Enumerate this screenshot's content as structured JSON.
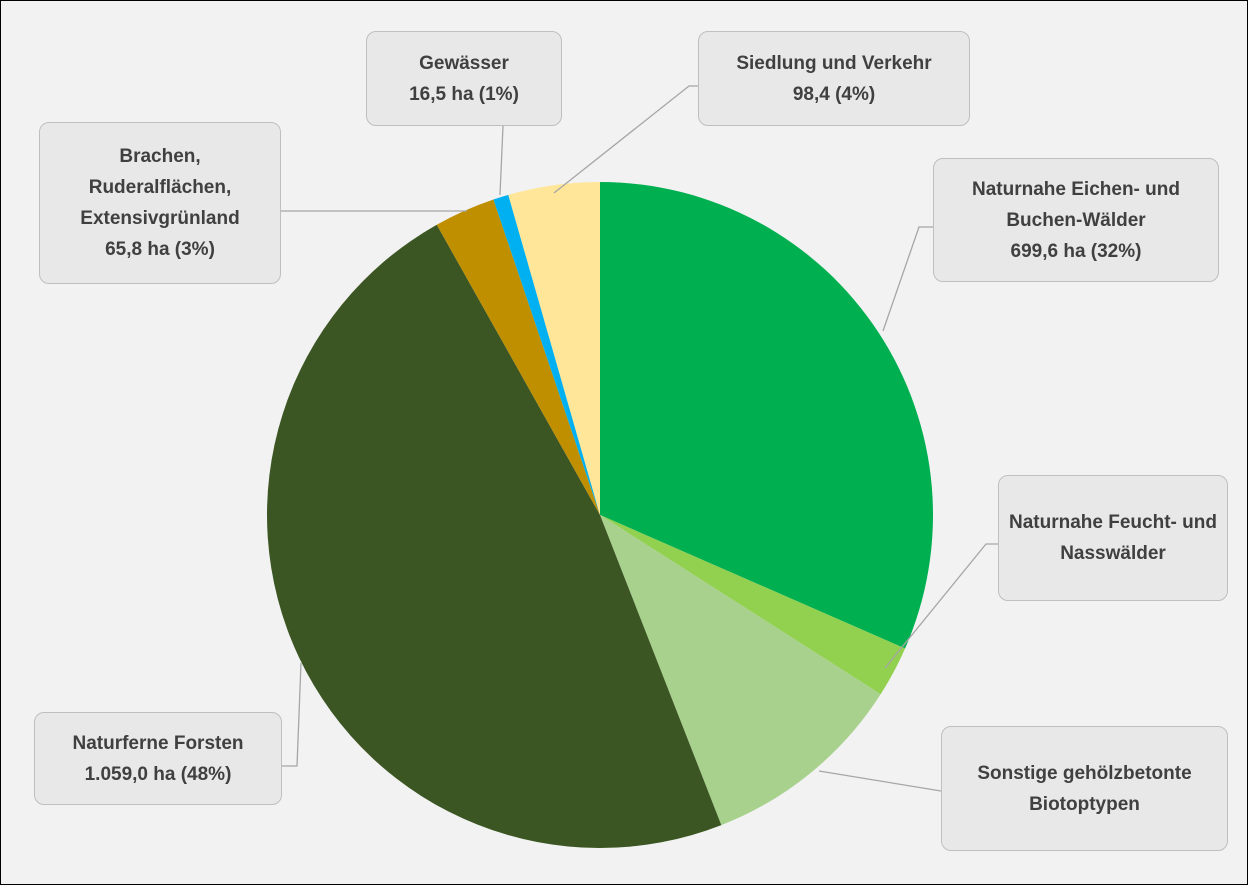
{
  "chart_data": {
    "type": "pie",
    "categories": [
      "Naturnahe Eichen- und Buchen-Wälder",
      "Naturnahe Feucht- und Nasswälder",
      "Sonstige gehölzbetonte Biotoptypen",
      "Naturferne Forsten",
      "Brachen, Ruderalflächen, Extensivgrünland",
      "Gewässer",
      "Siedlung und Verkehr"
    ],
    "values": [
      699.6,
      55,
      222,
      1059.0,
      65.8,
      16.5,
      98.4
    ],
    "value_labels": [
      "699,6 ha (32%)",
      null,
      null,
      "1.059,0 ha (48%)",
      "65,8 ha (3%)",
      "16,5 ha (1%)",
      "98,4 (4%)"
    ],
    "colors": [
      "#00b050",
      "#92d050",
      "#a9d18e",
      "#3b5623",
      "#bf8f00",
      "#00b0f0",
      "#ffe699"
    ]
  }
}
